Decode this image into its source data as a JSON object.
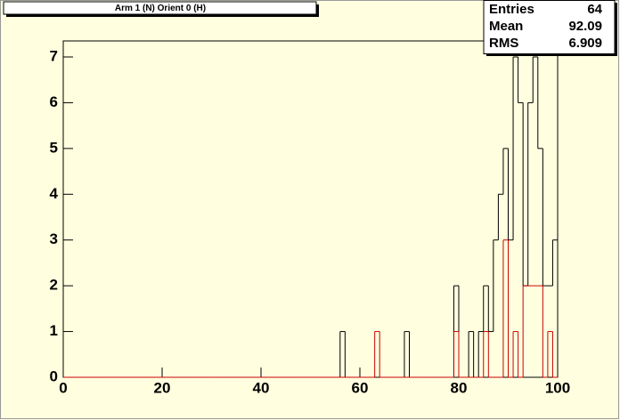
{
  "chart_data": {
    "type": "histogram",
    "title": "Arm 1 (N) Orient 0 (H)",
    "bins": [
      0,
      1,
      2,
      3,
      4,
      5,
      6,
      7,
      8,
      9,
      10,
      11,
      12,
      13,
      14,
      15,
      16,
      17,
      18,
      19,
      20,
      21,
      22,
      23,
      24,
      25,
      26,
      27,
      28,
      29,
      30,
      31,
      32,
      33,
      34,
      35,
      36,
      37,
      38,
      39,
      40,
      41,
      42,
      43,
      44,
      45,
      46,
      47,
      48,
      49,
      50,
      51,
      52,
      53,
      54,
      55,
      56,
      57,
      58,
      59,
      60,
      61,
      62,
      63,
      64,
      65,
      66,
      67,
      68,
      69,
      70,
      71,
      72,
      73,
      74,
      75,
      76,
      77,
      78,
      79,
      80,
      81,
      82,
      83,
      84,
      85,
      86,
      87,
      88,
      89,
      90,
      91,
      92,
      93,
      94,
      95,
      96,
      97,
      98,
      99,
      100
    ],
    "series": [
      {
        "color": "#000000",
        "values": [
          0,
          0,
          0,
          0,
          0,
          0,
          0,
          0,
          0,
          0,
          0,
          0,
          0,
          0,
          0,
          0,
          0,
          0,
          0,
          0,
          0,
          0,
          0,
          0,
          0,
          0,
          0,
          0,
          0,
          0,
          0,
          0,
          0,
          0,
          0,
          0,
          0,
          0,
          0,
          0,
          0,
          0,
          0,
          0,
          0,
          0,
          0,
          0,
          0,
          0,
          0,
          0,
          0,
          0,
          0,
          0,
          1,
          0,
          0,
          0,
          0,
          0,
          0,
          0,
          0,
          0,
          0,
          0,
          0,
          1,
          0,
          0,
          0,
          0,
          0,
          0,
          0,
          0,
          0,
          2,
          0,
          0,
          1,
          0,
          1,
          2,
          1,
          3,
          4,
          5,
          3,
          7,
          6,
          2,
          6,
          7,
          5,
          2,
          2,
          3
        ]
      },
      {
        "color": "#cc0000",
        "values": [
          0,
          0,
          0,
          0,
          0,
          0,
          0,
          0,
          0,
          0,
          0,
          0,
          0,
          0,
          0,
          0,
          0,
          0,
          0,
          0,
          0,
          0,
          0,
          0,
          0,
          0,
          0,
          0,
          0,
          0,
          0,
          0,
          0,
          0,
          0,
          0,
          0,
          0,
          0,
          0,
          0,
          0,
          0,
          0,
          0,
          0,
          0,
          0,
          0,
          0,
          0,
          0,
          0,
          0,
          0,
          0,
          0,
          0,
          0,
          0,
          0,
          0,
          0,
          1,
          0,
          0,
          0,
          0,
          0,
          0,
          0,
          0,
          0,
          0,
          0,
          0,
          0,
          0,
          0,
          1,
          0,
          0,
          0,
          0,
          0,
          1,
          0,
          0,
          0,
          3,
          0,
          1,
          0,
          2,
          2,
          2,
          2,
          0,
          1,
          0
        ]
      }
    ],
    "xlim": [
      0,
      100
    ],
    "xticks": [
      0,
      20,
      40,
      60,
      80,
      100
    ],
    "ylim": [
      0,
      7.35
    ],
    "yticks": [
      0,
      1,
      2,
      3,
      4,
      5,
      6,
      7
    ],
    "stats": {
      "labels": [
        "Entries",
        "Mean",
        "RMS"
      ],
      "values": [
        64,
        92.09,
        6.909
      ]
    }
  }
}
